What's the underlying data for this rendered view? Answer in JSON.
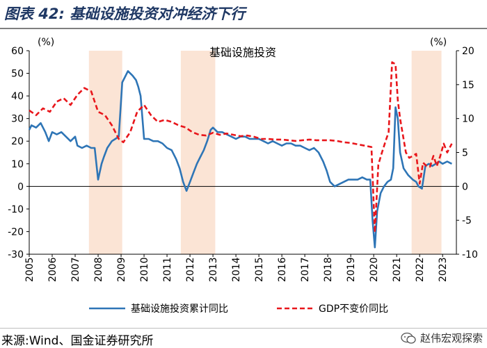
{
  "figure": {
    "label": "图表 42:",
    "title": "基础设施投资对冲经济下行"
  },
  "source_text": "来源:Wind、国金证券研究所",
  "watermark_text": "赵伟宏观探索",
  "chart_data": {
    "type": "line",
    "title": "基础设施投资",
    "left_axis": {
      "unit": "(%)",
      "range": [
        -30,
        60
      ],
      "ticks": [
        -30,
        -20,
        -10,
        0,
        10,
        20,
        30,
        40,
        50,
        60
      ]
    },
    "right_axis": {
      "unit": "(%)",
      "range": [
        -10,
        20
      ],
      "ticks": [
        -10,
        -5,
        0,
        5,
        10,
        15,
        20
      ]
    },
    "x_range": [
      2005,
      2023.6
    ],
    "x_ticks": [
      "2005",
      "2006",
      "2007",
      "2008",
      "2009",
      "2010",
      "2011",
      "2012",
      "2013",
      "2014",
      "2015",
      "2016",
      "2017",
      "2018",
      "2019",
      "2020",
      "2021",
      "2022",
      "2023"
    ],
    "shaded_periods": [
      [
        2007.6,
        2009.05
      ],
      [
        2011.6,
        2013.1
      ],
      [
        2021.65,
        2022.95
      ]
    ],
    "colors": {
      "infra": "#2e75b6",
      "gdp": "#e8161b",
      "shade": "#fbe4d5",
      "axis": "#000000",
      "grid": "#d9d9d9"
    },
    "series": [
      {
        "name": "基础设施投资累计同比",
        "axis": "left",
        "style": "solid",
        "color": "#2e75b6",
        "x": [
          2005.0,
          2005.1,
          2005.3,
          2005.5,
          2005.7,
          2005.85,
          2006.0,
          2006.2,
          2006.4,
          2006.6,
          2006.8,
          2007.0,
          2007.1,
          2007.3,
          2007.5,
          2007.7,
          2007.85,
          2008.0,
          2008.15,
          2008.25,
          2008.4,
          2008.6,
          2008.75,
          2008.9,
          2009.05,
          2009.15,
          2009.3,
          2009.5,
          2009.65,
          2009.75,
          2009.85,
          2010.0,
          2010.2,
          2010.4,
          2010.6,
          2010.8,
          2011.0,
          2011.2,
          2011.4,
          2011.55,
          2011.7,
          2011.85,
          2012.0,
          2012.15,
          2012.3,
          2012.45,
          2012.6,
          2012.75,
          2012.9,
          2013.0,
          2013.2,
          2013.4,
          2013.6,
          2013.8,
          2014.0,
          2014.2,
          2014.4,
          2014.6,
          2014.8,
          2015.0,
          2015.2,
          2015.4,
          2015.6,
          2015.8,
          2016.0,
          2016.2,
          2016.4,
          2016.6,
          2016.8,
          2017.0,
          2017.2,
          2017.4,
          2017.6,
          2017.8,
          2017.95,
          2018.1,
          2018.3,
          2018.5,
          2018.7,
          2018.9,
          2019.1,
          2019.3,
          2019.5,
          2019.7,
          2019.85,
          2019.95,
          2020.05,
          2020.15,
          2020.3,
          2020.45,
          2020.6,
          2020.75,
          2020.85,
          2020.95,
          2021.05,
          2021.15,
          2021.3,
          2021.5,
          2021.7,
          2021.85,
          2021.95,
          2022.1,
          2022.25,
          2022.4,
          2022.55,
          2022.7,
          2022.85,
          2023.0,
          2023.2,
          2023.4
        ],
        "values": [
          25,
          27,
          26,
          28,
          24,
          20,
          24,
          23,
          24,
          22,
          20,
          22,
          18,
          17,
          18,
          17,
          17,
          3,
          10,
          13,
          17,
          20,
          21,
          22,
          46,
          48,
          51,
          49,
          47,
          44,
          40,
          21,
          21,
          20,
          20,
          19,
          17,
          16,
          12,
          8,
          2,
          -2,
          2,
          6,
          10,
          13,
          16,
          20,
          25,
          26,
          24,
          24,
          23,
          22,
          21,
          22,
          22,
          21,
          21,
          21,
          20,
          19,
          20,
          19,
          18,
          19,
          19,
          18,
          18,
          17,
          16,
          17,
          15,
          11,
          7,
          2,
          0,
          1,
          2,
          3,
          3,
          3,
          4,
          3,
          3,
          -15,
          -27,
          -11,
          -3,
          0,
          2,
          3,
          8,
          35,
          30,
          15,
          8,
          5,
          3,
          2,
          0,
          -1,
          9,
          10,
          9,
          10,
          11,
          10,
          11,
          10
        ]
      },
      {
        "name": "GDP不变价同比",
        "axis": "right",
        "style": "dashed",
        "color": "#e8161b",
        "x": [
          2005.0,
          2005.3,
          2005.6,
          2005.9,
          2006.2,
          2006.5,
          2006.8,
          2007.1,
          2007.4,
          2007.7,
          2008.0,
          2008.3,
          2008.6,
          2008.9,
          2009.1,
          2009.4,
          2009.7,
          2010.0,
          2010.3,
          2010.6,
          2010.9,
          2011.2,
          2011.5,
          2011.8,
          2012.1,
          2012.4,
          2012.7,
          2013.0,
          2013.3,
          2013.6,
          2013.9,
          2014.2,
          2014.5,
          2014.8,
          2015.1,
          2015.4,
          2015.7,
          2016.0,
          2016.3,
          2016.6,
          2016.9,
          2017.2,
          2017.5,
          2017.8,
          2018.1,
          2018.4,
          2018.7,
          2019.0,
          2019.3,
          2019.6,
          2019.9,
          2020.05,
          2020.2,
          2020.35,
          2020.5,
          2020.65,
          2020.8,
          2020.95,
          2021.05,
          2021.15,
          2021.25,
          2021.4,
          2021.55,
          2021.7,
          2021.85,
          2022.0,
          2022.15,
          2022.3,
          2022.45,
          2022.6,
          2022.75,
          2022.9,
          2023.05,
          2023.2,
          2023.4
        ],
        "values": [
          11.2,
          10.5,
          11.5,
          11.0,
          12.5,
          13.0,
          12.0,
          13.5,
          14.5,
          14.0,
          11.0,
          10.5,
          9.0,
          7.0,
          6.5,
          8.0,
          11.0,
          12.0,
          10.5,
          9.5,
          9.8,
          9.5,
          9.0,
          8.7,
          8.0,
          7.6,
          7.5,
          7.9,
          7.6,
          7.8,
          7.6,
          7.4,
          7.5,
          7.3,
          7.0,
          7.0,
          6.9,
          6.9,
          6.8,
          6.7,
          6.8,
          6.9,
          6.8,
          6.8,
          6.8,
          6.7,
          6.5,
          6.4,
          6.2,
          6.0,
          5.8,
          -6.8,
          3.2,
          4.9,
          6.5,
          8.0,
          18.3,
          18.0,
          12.7,
          10.0,
          8.0,
          5.0,
          4.2,
          4.5,
          4.8,
          0.4,
          3.5,
          3.0,
          2.9,
          4.5,
          3.0,
          4.5,
          6.3,
          5.0,
          6.3
        ]
      }
    ],
    "legend": "bottom"
  }
}
